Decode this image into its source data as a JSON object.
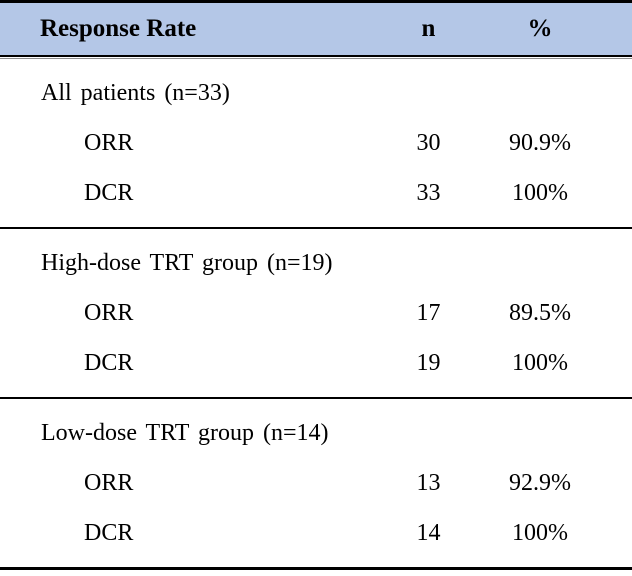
{
  "table": {
    "header": {
      "col_label": "Response Rate",
      "col_n": "n",
      "col_pct": "%"
    },
    "sections": [
      {
        "label": "All patients (n=33)",
        "rows": [
          {
            "name": "ORR",
            "n": "30",
            "pct": "90.9%"
          },
          {
            "name": "DCR",
            "n": "33",
            "pct": "100%"
          }
        ]
      },
      {
        "label": "High-dose TRT group (n=19)",
        "rows": [
          {
            "name": "ORR",
            "n": "17",
            "pct": "89.5%"
          },
          {
            "name": "DCR",
            "n": "19",
            "pct": "100%"
          }
        ]
      },
      {
        "label": "Low-dose TRT group (n=14)",
        "rows": [
          {
            "name": "ORR",
            "n": "13",
            "pct": "92.9%"
          },
          {
            "name": "DCR",
            "n": "14",
            "pct": "100%"
          }
        ]
      }
    ],
    "colors": {
      "header_bg": "#b4c7e7",
      "border": "#000000",
      "text": "#000000"
    }
  }
}
